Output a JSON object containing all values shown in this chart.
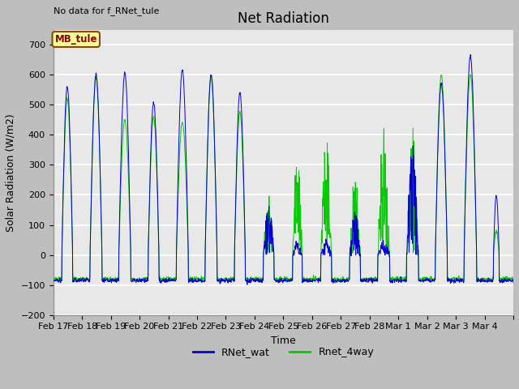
{
  "title": "Net Radiation",
  "xlabel": "Time",
  "ylabel": "Solar Radiation (W/m2)",
  "top_left_text": "No data for f_RNet_tule",
  "legend_box_text": "MB_tule",
  "legend_box_color": "#FFFF99",
  "legend_box_edge": "#8B4513",
  "legend_box_text_color": "#8B0000",
  "ylim": [
    -200,
    750
  ],
  "yticks": [
    -200,
    -100,
    0,
    100,
    200,
    300,
    400,
    500,
    600,
    700
  ],
  "line1_label": "RNet_wat",
  "line1_color": "#0000CC",
  "line2_label": "Rnet_4way",
  "line2_color": "#00CC00",
  "bg_color": "#BEBEBE",
  "plot_bg_color": "#E8E8E8",
  "n_days": 16,
  "xtick_labels": [
    "Feb 17",
    "Feb 18",
    "Feb 19",
    "Feb 20",
    "Feb 21",
    "Feb 22",
    "Feb 23",
    "Feb 24",
    "Feb 25",
    "Feb 26",
    "Feb 27",
    "Feb 28",
    "Mar 1",
    "Mar 2",
    "Mar 3",
    "Mar 4"
  ],
  "title_fontsize": 12,
  "axis_label_fontsize": 9,
  "tick_fontsize": 8,
  "legend_fontsize": 9
}
